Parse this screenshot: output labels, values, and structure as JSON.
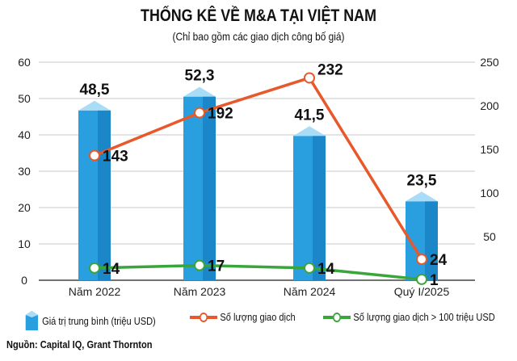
{
  "chart_data": {
    "type": "bar+line",
    "title": "THỐNG KÊ VỀ M&A TẠI VIỆT NAM",
    "subtitle": "(Chỉ bao gồm các giao dịch công bố giá)",
    "categories": [
      "Năm 2022",
      "Năm 2023",
      "Năm 2024",
      "Quý I/2025"
    ],
    "left_axis": {
      "ylim": [
        0,
        60
      ],
      "ticks": [
        "0",
        "10",
        "20",
        "30",
        "40",
        "50",
        "60"
      ]
    },
    "right_axis": {
      "ylim": [
        0,
        250
      ],
      "ticks": [
        "50",
        "100",
        "150",
        "200",
        "250"
      ]
    },
    "grid": true,
    "series": [
      {
        "name": "Giá trị trung bình (triệu USD)",
        "type": "bar",
        "axis": "left",
        "values": [
          48.5,
          52.3,
          41.5,
          23.5
        ],
        "labels": [
          "48,5",
          "52,3",
          "41,5",
          "23,5"
        ],
        "color": "#2a9fe0"
      },
      {
        "name": "Số lượng giao dịch",
        "type": "line",
        "axis": "right",
        "values": [
          143,
          192,
          232,
          24
        ],
        "labels": [
          "143",
          "192",
          "232",
          "24"
        ],
        "color": "#e8582a"
      },
      {
        "name": "Số lượng giao dịch > 100 triệu USD",
        "type": "line",
        "axis": "right",
        "values": [
          14,
          17,
          14,
          1
        ],
        "labels": [
          "14",
          "17",
          "14",
          "1"
        ],
        "color": "#3aa53a"
      }
    ],
    "legend": "bottom"
  },
  "source": "Nguồn: Capital IQ, Grant Thornton"
}
